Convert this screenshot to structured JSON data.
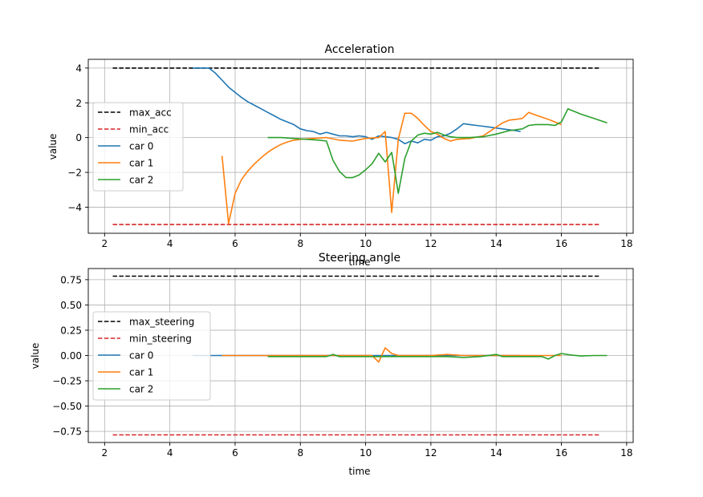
{
  "chart_data": [
    {
      "type": "line",
      "title": "Acceleration",
      "xlabel": "time",
      "ylabel": "value",
      "xlim": [
        1.5,
        18.2
      ],
      "ylim": [
        -5.5,
        4.5
      ],
      "xticks": [
        2,
        4,
        6,
        8,
        10,
        12,
        14,
        16,
        18
      ],
      "yticks": [
        -4,
        -2,
        0,
        2,
        4
      ],
      "grid": true,
      "legend_position": "center-left",
      "series": [
        {
          "name": "max_acc",
          "color": "#000000",
          "dashed": true,
          "x": [
            2.25,
            17.15
          ],
          "y": [
            4,
            4
          ]
        },
        {
          "name": "min_acc",
          "color": "#d62728",
          "dashed": true,
          "x": [
            2.25,
            17.15
          ],
          "y": [
            -5,
            -5
          ]
        },
        {
          "name": "car 0",
          "color": "#1f77b4",
          "dashed": false,
          "x": [
            4.7,
            5.0,
            5.2,
            5.4,
            5.6,
            5.8,
            6.0,
            6.2,
            6.4,
            6.6,
            6.8,
            7.0,
            7.2,
            7.4,
            7.6,
            7.8,
            8.0,
            8.2,
            8.4,
            8.6,
            8.8,
            9.0,
            9.2,
            9.4,
            9.6,
            9.8,
            10.0,
            10.2,
            10.4,
            10.6,
            10.8,
            11.0,
            11.2,
            11.4,
            11.6,
            11.8,
            12.0,
            12.2,
            12.4,
            12.6,
            12.8,
            13.0,
            13.2,
            13.4,
            13.6,
            13.8,
            14.0,
            14.2,
            14.4,
            14.6,
            14.75
          ],
          "y": [
            4.0,
            4.0,
            4.0,
            3.7,
            3.3,
            2.9,
            2.6,
            2.3,
            2.05,
            1.85,
            1.65,
            1.45,
            1.25,
            1.05,
            0.9,
            0.75,
            0.5,
            0.4,
            0.35,
            0.2,
            0.3,
            0.2,
            0.1,
            0.1,
            0.05,
            0.1,
            0.05,
            -0.1,
            0.1,
            0.05,
            0.0,
            -0.1,
            -0.35,
            -0.2,
            -0.3,
            -0.1,
            -0.15,
            0.05,
            0.1,
            0.25,
            0.5,
            0.8,
            0.75,
            0.7,
            0.65,
            0.6,
            0.55,
            0.5,
            0.45,
            0.4,
            0.35
          ]
        },
        {
          "name": "car 1",
          "color": "#ff7f0e",
          "dashed": false,
          "x": [
            5.6,
            5.8,
            6.0,
            6.2,
            6.4,
            6.6,
            6.8,
            7.0,
            7.2,
            7.4,
            7.6,
            7.8,
            8.0,
            8.4,
            8.8,
            9.2,
            9.6,
            10.0,
            10.4,
            10.6,
            10.8,
            11.0,
            11.2,
            11.4,
            11.6,
            11.8,
            12.0,
            12.2,
            12.4,
            12.6,
            12.8,
            13.2,
            13.6,
            13.8,
            14.0,
            14.2,
            14.4,
            14.6,
            14.8,
            15.0,
            15.2,
            15.6,
            16.0
          ],
          "y": [
            -1.05,
            -4.95,
            -3.2,
            -2.4,
            -1.9,
            -1.5,
            -1.15,
            -0.85,
            -0.6,
            -0.4,
            -0.25,
            -0.15,
            -0.1,
            -0.05,
            0.0,
            -0.15,
            -0.2,
            -0.05,
            0.0,
            0.35,
            -4.3,
            -0.1,
            1.4,
            1.4,
            1.1,
            0.7,
            0.35,
            0.2,
            -0.05,
            -0.2,
            -0.1,
            -0.05,
            0.1,
            0.35,
            0.6,
            0.85,
            1.0,
            1.05,
            1.1,
            1.45,
            1.3,
            1.05,
            0.75
          ]
        },
        {
          "name": "car 2",
          "color": "#2ca02c",
          "dashed": false,
          "x": [
            7.0,
            7.4,
            7.8,
            8.2,
            8.6,
            8.8,
            9.0,
            9.2,
            9.4,
            9.6,
            9.8,
            10.0,
            10.2,
            10.4,
            10.6,
            10.8,
            10.9,
            11.0,
            11.2,
            11.4,
            11.6,
            11.8,
            12.0,
            12.2,
            12.4,
            12.6,
            12.8,
            13.2,
            13.6,
            14.0,
            14.4,
            14.8,
            15.0,
            15.2,
            15.6,
            15.8,
            16.0,
            16.2,
            16.6,
            17.0,
            17.4
          ],
          "y": [
            0.0,
            0.0,
            -0.05,
            -0.1,
            -0.15,
            -0.2,
            -1.3,
            -1.95,
            -2.3,
            -2.3,
            -2.15,
            -1.85,
            -1.5,
            -0.9,
            -1.4,
            -0.85,
            -2.0,
            -3.2,
            -1.2,
            -0.2,
            0.15,
            0.25,
            0.2,
            0.3,
            0.15,
            0.05,
            0.0,
            0.0,
            0.05,
            0.2,
            0.4,
            0.5,
            0.7,
            0.75,
            0.75,
            0.7,
            0.9,
            1.65,
            1.35,
            1.1,
            0.85
          ]
        }
      ]
    },
    {
      "type": "line",
      "title": "Steering angle",
      "xlabel": "time",
      "ylabel": "value",
      "xlim": [
        1.5,
        18.2
      ],
      "ylim": [
        -0.86,
        0.86
      ],
      "xticks": [
        2,
        4,
        6,
        8,
        10,
        12,
        14,
        16,
        18
      ],
      "yticks": [
        -0.75,
        -0.5,
        -0.25,
        0.0,
        0.25,
        0.5,
        0.75
      ],
      "ytick_labels": [
        "−0.75",
        "−0.50",
        "−0.25",
        "0.00",
        "0.25",
        "0.50",
        "0.75"
      ],
      "grid": true,
      "legend_position": "center-left",
      "series": [
        {
          "name": "max_steering",
          "color": "#000000",
          "dashed": true,
          "x": [
            2.25,
            17.15
          ],
          "y": [
            0.785,
            0.785
          ]
        },
        {
          "name": "min_steering",
          "color": "#d62728",
          "dashed": true,
          "x": [
            2.25,
            17.15
          ],
          "y": [
            -0.785,
            -0.785
          ]
        },
        {
          "name": "car 0",
          "color": "#1f77b4",
          "dashed": false,
          "x": [
            4.7,
            6.0,
            8.0,
            10.0,
            12.0,
            13.0,
            14.0,
            14.75
          ],
          "y": [
            0.0,
            0.0,
            0.0,
            0.0,
            0.0,
            0.0,
            0.0,
            0.0
          ]
        },
        {
          "name": "car 1",
          "color": "#ff7f0e",
          "dashed": false,
          "x": [
            5.6,
            6.0,
            7.0,
            8.0,
            9.0,
            10.0,
            10.2,
            10.4,
            10.6,
            10.8,
            11.0,
            11.5,
            12.0,
            12.5,
            13.0,
            13.5,
            14.0,
            14.5,
            15.0,
            15.5,
            16.0
          ],
          "y": [
            0.0,
            0.0,
            0.0,
            0.0,
            0.0,
            0.0,
            0.0,
            -0.065,
            0.075,
            0.02,
            0.0,
            0.0,
            0.0,
            0.01,
            0.0,
            0.0,
            0.0,
            0.0,
            0.0,
            0.0,
            0.0
          ]
        },
        {
          "name": "car 2",
          "color": "#2ca02c",
          "dashed": false,
          "x": [
            7.0,
            8.0,
            8.8,
            9.0,
            9.2,
            10.0,
            10.8,
            11.0,
            12.0,
            12.5,
            13.0,
            13.5,
            14.0,
            14.2,
            15.0,
            15.4,
            15.6,
            15.8,
            16.0,
            16.3,
            16.6,
            17.0,
            17.4
          ],
          "y": [
            -0.01,
            -0.01,
            -0.01,
            0.01,
            -0.01,
            -0.01,
            -0.01,
            -0.01,
            -0.01,
            -0.01,
            -0.02,
            -0.01,
            0.01,
            -0.01,
            -0.01,
            -0.01,
            -0.035,
            0.0,
            0.02,
            0.005,
            -0.005,
            0.0,
            0.0
          ]
        }
      ]
    }
  ]
}
